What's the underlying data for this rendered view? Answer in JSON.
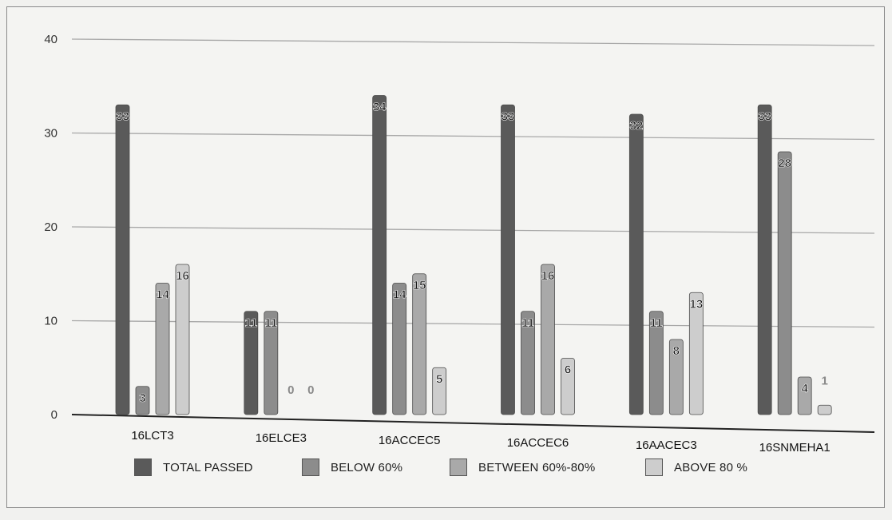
{
  "chart_data": {
    "type": "bar",
    "categories": [
      "16LCT3",
      "16ELCE3",
      "16ACCEC5",
      "16ACCEC6",
      "16AACEC3",
      "16SNMEHA1"
    ],
    "series": [
      {
        "name": "TOTAL PASSED",
        "values": [
          33,
          11,
          34,
          33,
          32,
          33
        ],
        "color": "#5a5a5a"
      },
      {
        "name": "BELOW 60%",
        "values": [
          3,
          11,
          14,
          11,
          11,
          28
        ],
        "color": "#8c8c8c"
      },
      {
        "name": "BETWEEN 60%-80%",
        "values": [
          14,
          0,
          15,
          16,
          8,
          4
        ],
        "color": "#a9a9a9"
      },
      {
        "name": "ABOVE 80 %",
        "values": [
          16,
          0,
          5,
          6,
          13,
          1
        ],
        "color": "#cdcdcd"
      }
    ],
    "yticks": [
      "0",
      "10",
      "20",
      "30",
      "40"
    ],
    "ylim": [
      0,
      40
    ],
    "grid": true,
    "legend_position": "bottom"
  }
}
